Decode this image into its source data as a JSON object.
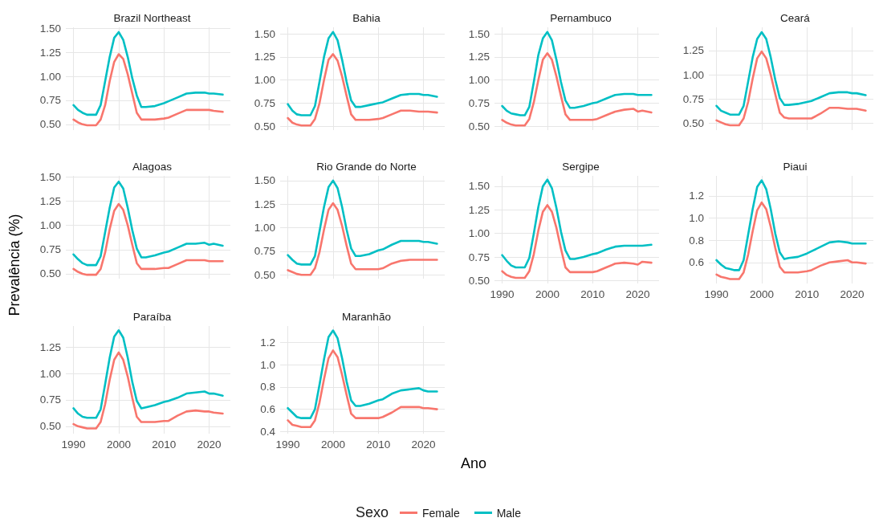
{
  "chart_data": [
    {
      "type": "line",
      "title": "Brazil Northeast",
      "legend": "bottom",
      "legend_title": "Sexo",
      "grid": true,
      "marker": "none",
      "tick_labels": "y",
      "x": [
        1990,
        1991,
        1992,
        1993,
        1994,
        1995,
        1996,
        1997,
        1998,
        1999,
        2000,
        2001,
        2002,
        2003,
        2004,
        2005,
        2006,
        2008,
        2010,
        2011,
        2013,
        2015,
        2017,
        2019,
        2020,
        2021,
        2023
      ],
      "xlim": [
        1988.3,
        2024.7
      ],
      "xticks": [
        1990,
        2000,
        2010,
        2020
      ],
      "ylim": [
        0.44,
        1.51
      ],
      "yticks": [
        {
          "value": 0.5,
          "label": "0.50"
        },
        {
          "value": 0.75,
          "label": "0.75"
        },
        {
          "value": 1,
          "label": "1.00"
        },
        {
          "value": 1.25,
          "label": "1.25"
        },
        {
          "value": 1.5,
          "label": "1.50"
        }
      ],
      "series": [
        {
          "name": "Female",
          "color": "#f8766d",
          "values": [
            0.55,
            0.52,
            0.5,
            0.49,
            0.49,
            0.49,
            0.55,
            0.7,
            0.95,
            1.15,
            1.23,
            1.18,
            1.02,
            0.82,
            0.62,
            0.55,
            0.55,
            0.55,
            0.56,
            0.57,
            0.61,
            0.65,
            0.65,
            0.65,
            0.65,
            0.64,
            0.63
          ]
        },
        {
          "name": "Male",
          "color": "#00bfc4",
          "values": [
            0.7,
            0.65,
            0.62,
            0.6,
            0.6,
            0.6,
            0.7,
            0.95,
            1.2,
            1.4,
            1.46,
            1.38,
            1.2,
            0.98,
            0.8,
            0.68,
            0.68,
            0.69,
            0.72,
            0.74,
            0.78,
            0.82,
            0.83,
            0.83,
            0.82,
            0.82,
            0.81
          ]
        }
      ]
    },
    {
      "type": "line",
      "title": "Bahia",
      "grid": true,
      "marker": "none",
      "tick_labels": "y",
      "x": [
        1990,
        1991,
        1992,
        1993,
        1994,
        1995,
        1996,
        1997,
        1998,
        1999,
        2000,
        2001,
        2002,
        2003,
        2004,
        2005,
        2006,
        2008,
        2010,
        2011,
        2013,
        2015,
        2017,
        2019,
        2020,
        2021,
        2023
      ],
      "xlim": [
        1988.3,
        2024.7
      ],
      "xticks": [
        1990,
        2000,
        2010,
        2020
      ],
      "ylim": [
        0.46,
        1.57
      ],
      "yticks": [
        {
          "value": 0.5,
          "label": "0.50"
        },
        {
          "value": 0.75,
          "label": "0.75"
        },
        {
          "value": 1,
          "label": "1.00"
        },
        {
          "value": 1.25,
          "label": "1.25"
        },
        {
          "value": 1.5,
          "label": "1.50"
        }
      ],
      "series": [
        {
          "color": "#f8766d",
          "values": [
            0.59,
            0.54,
            0.52,
            0.51,
            0.51,
            0.51,
            0.58,
            0.75,
            1.0,
            1.22,
            1.28,
            1.21,
            1.04,
            0.83,
            0.63,
            0.57,
            0.57,
            0.57,
            0.58,
            0.59,
            0.63,
            0.67,
            0.67,
            0.66,
            0.66,
            0.66,
            0.65
          ]
        },
        {
          "color": "#00bfc4",
          "values": [
            0.74,
            0.67,
            0.63,
            0.62,
            0.62,
            0.62,
            0.72,
            0.98,
            1.25,
            1.45,
            1.52,
            1.43,
            1.22,
            0.98,
            0.78,
            0.71,
            0.71,
            0.73,
            0.75,
            0.76,
            0.8,
            0.84,
            0.85,
            0.85,
            0.84,
            0.84,
            0.82
          ]
        }
      ]
    },
    {
      "type": "line",
      "title": "Pernambuco",
      "grid": true,
      "marker": "none",
      "tick_labels": "y",
      "x": [
        1990,
        1991,
        1992,
        1993,
        1994,
        1995,
        1996,
        1997,
        1998,
        1999,
        2000,
        2001,
        2002,
        2003,
        2004,
        2005,
        2006,
        2008,
        2010,
        2011,
        2013,
        2015,
        2017,
        2019,
        2020,
        2021,
        2023
      ],
      "xlim": [
        1988.3,
        2024.7
      ],
      "xticks": [
        1990,
        2000,
        2010,
        2020
      ],
      "ylim": [
        0.46,
        1.57
      ],
      "yticks": [
        {
          "value": 0.5,
          "label": "0.50"
        },
        {
          "value": 0.75,
          "label": "0.75"
        },
        {
          "value": 1,
          "label": "1.00"
        },
        {
          "value": 1.25,
          "label": "1.25"
        },
        {
          "value": 1.5,
          "label": "1.50"
        }
      ],
      "series": [
        {
          "color": "#f8766d",
          "values": [
            0.57,
            0.54,
            0.52,
            0.51,
            0.51,
            0.51,
            0.58,
            0.76,
            1.0,
            1.22,
            1.29,
            1.22,
            1.04,
            0.83,
            0.63,
            0.57,
            0.57,
            0.57,
            0.57,
            0.58,
            0.62,
            0.66,
            0.68,
            0.69,
            0.66,
            0.67,
            0.65
          ]
        },
        {
          "color": "#00bfc4",
          "values": [
            0.72,
            0.67,
            0.64,
            0.63,
            0.62,
            0.62,
            0.71,
            0.98,
            1.27,
            1.45,
            1.52,
            1.43,
            1.22,
            0.98,
            0.78,
            0.7,
            0.7,
            0.72,
            0.75,
            0.76,
            0.8,
            0.84,
            0.85,
            0.85,
            0.84,
            0.84,
            0.84
          ]
        }
      ]
    },
    {
      "type": "line",
      "title": "Ceará",
      "grid": true,
      "marker": "none",
      "tick_labels": "y",
      "x": [
        1990,
        1991,
        1992,
        1993,
        1994,
        1995,
        1996,
        1997,
        1998,
        1999,
        2000,
        2001,
        2002,
        2003,
        2004,
        2005,
        2006,
        2008,
        2010,
        2011,
        2013,
        2015,
        2017,
        2019,
        2020,
        2021,
        2023
      ],
      "xlim": [
        1988.3,
        2024.7
      ],
      "xticks": [
        1990,
        2000,
        2010,
        2020
      ],
      "ylim": [
        0.43,
        1.49
      ],
      "yticks": [
        {
          "value": 0.5,
          "label": "0.50"
        },
        {
          "value": 0.75,
          "label": "0.75"
        },
        {
          "value": 1,
          "label": "1.00"
        },
        {
          "value": 1.25,
          "label": "1.25"
        }
      ],
      "series": [
        {
          "color": "#f8766d",
          "values": [
            0.53,
            0.51,
            0.49,
            0.48,
            0.48,
            0.48,
            0.55,
            0.72,
            0.96,
            1.17,
            1.24,
            1.17,
            1.0,
            0.8,
            0.61,
            0.56,
            0.55,
            0.55,
            0.55,
            0.55,
            0.6,
            0.66,
            0.66,
            0.65,
            0.65,
            0.65,
            0.63
          ]
        },
        {
          "color": "#00bfc4",
          "values": [
            0.68,
            0.63,
            0.61,
            0.59,
            0.59,
            0.59,
            0.68,
            0.93,
            1.18,
            1.37,
            1.44,
            1.37,
            1.18,
            0.95,
            0.76,
            0.69,
            0.69,
            0.7,
            0.72,
            0.73,
            0.77,
            0.81,
            0.82,
            0.82,
            0.81,
            0.81,
            0.79
          ]
        }
      ]
    },
    {
      "type": "line",
      "title": "Alagoas",
      "ylabel": "Prevalência (%)",
      "grid": true,
      "marker": "none",
      "tick_labels": "y",
      "x": [
        1990,
        1991,
        1992,
        1993,
        1994,
        1995,
        1996,
        1997,
        1998,
        1999,
        2000,
        2001,
        2002,
        2003,
        2004,
        2005,
        2006,
        2008,
        2010,
        2011,
        2013,
        2015,
        2017,
        2019,
        2020,
        2021,
        2023
      ],
      "xlim": [
        1988.3,
        2024.7
      ],
      "xticks": [
        1990,
        2000,
        2010,
        2020
      ],
      "ylim": [
        0.45,
        1.51
      ],
      "yticks": [
        {
          "value": 0.5,
          "label": "0.50"
        },
        {
          "value": 0.75,
          "label": "0.75"
        },
        {
          "value": 1,
          "label": "1.00"
        },
        {
          "value": 1.25,
          "label": "1.25"
        },
        {
          "value": 1.5,
          "label": "1.50"
        }
      ],
      "series": [
        {
          "color": "#f8766d",
          "values": [
            0.55,
            0.52,
            0.5,
            0.49,
            0.49,
            0.49,
            0.55,
            0.72,
            0.96,
            1.15,
            1.22,
            1.16,
            1.0,
            0.8,
            0.61,
            0.55,
            0.55,
            0.55,
            0.56,
            0.56,
            0.6,
            0.64,
            0.64,
            0.64,
            0.63,
            0.63,
            0.63
          ]
        },
        {
          "color": "#00bfc4",
          "values": [
            0.7,
            0.65,
            0.61,
            0.59,
            0.59,
            0.59,
            0.68,
            0.93,
            1.18,
            1.39,
            1.45,
            1.38,
            1.18,
            0.95,
            0.76,
            0.67,
            0.67,
            0.69,
            0.72,
            0.73,
            0.77,
            0.81,
            0.81,
            0.82,
            0.8,
            0.81,
            0.79
          ]
        }
      ]
    },
    {
      "type": "line",
      "title": "Rio Grande do Norte",
      "grid": true,
      "marker": "none",
      "tick_labels": "y",
      "x": [
        1990,
        1991,
        1992,
        1993,
        1994,
        1995,
        1996,
        1997,
        1998,
        1999,
        2000,
        2001,
        2002,
        2003,
        2004,
        2005,
        2006,
        2008,
        2010,
        2011,
        2013,
        2015,
        2017,
        2019,
        2020,
        2021,
        2023
      ],
      "xlim": [
        1988.3,
        2024.7
      ],
      "xticks": [
        1990,
        2000,
        2010,
        2020
      ],
      "ylim": [
        0.46,
        1.55
      ],
      "yticks": [
        {
          "value": 0.5,
          "label": "0.50"
        },
        {
          "value": 0.75,
          "label": "0.75"
        },
        {
          "value": 1,
          "label": "1.00"
        },
        {
          "value": 1.25,
          "label": "1.25"
        },
        {
          "value": 1.5,
          "label": "1.50"
        }
      ],
      "series": [
        {
          "color": "#f8766d",
          "values": [
            0.55,
            0.53,
            0.51,
            0.5,
            0.5,
            0.5,
            0.57,
            0.74,
            0.98,
            1.19,
            1.26,
            1.19,
            1.02,
            0.81,
            0.62,
            0.56,
            0.56,
            0.56,
            0.56,
            0.57,
            0.62,
            0.65,
            0.66,
            0.66,
            0.66,
            0.66,
            0.66
          ]
        },
        {
          "color": "#00bfc4",
          "values": [
            0.71,
            0.66,
            0.62,
            0.61,
            0.61,
            0.61,
            0.7,
            0.96,
            1.22,
            1.43,
            1.5,
            1.42,
            1.22,
            0.98,
            0.78,
            0.7,
            0.7,
            0.72,
            0.76,
            0.77,
            0.82,
            0.86,
            0.86,
            0.86,
            0.85,
            0.85,
            0.83
          ]
        }
      ]
    },
    {
      "type": "line",
      "title": "Sergipe",
      "grid": true,
      "marker": "none",
      "x": [
        1990,
        1991,
        1992,
        1993,
        1994,
        1995,
        1996,
        1997,
        1998,
        1999,
        2000,
        2001,
        2002,
        2003,
        2004,
        2005,
        2006,
        2008,
        2010,
        2011,
        2013,
        2015,
        2017,
        2019,
        2020,
        2021,
        2023
      ],
      "xlim": [
        1988.3,
        2024.7
      ],
      "xticks": [
        1990,
        2000,
        2010,
        2020
      ],
      "ylim": [
        0.47,
        1.61
      ],
      "yticks": [
        {
          "value": 0.5,
          "label": "0.50"
        },
        {
          "value": 0.75,
          "label": "0.75"
        },
        {
          "value": 1,
          "label": "1.00"
        },
        {
          "value": 1.25,
          "label": "1.25"
        },
        {
          "value": 1.5,
          "label": "1.50"
        }
      ],
      "series": [
        {
          "color": "#f8766d",
          "values": [
            0.6,
            0.56,
            0.54,
            0.53,
            0.53,
            0.53,
            0.6,
            0.78,
            1.03,
            1.23,
            1.3,
            1.23,
            1.06,
            0.84,
            0.64,
            0.59,
            0.59,
            0.59,
            0.59,
            0.6,
            0.64,
            0.68,
            0.69,
            0.68,
            0.67,
            0.7,
            0.69
          ]
        },
        {
          "color": "#00bfc4",
          "values": [
            0.77,
            0.71,
            0.66,
            0.64,
            0.64,
            0.64,
            0.74,
            1.0,
            1.28,
            1.5,
            1.57,
            1.48,
            1.27,
            1.02,
            0.82,
            0.73,
            0.73,
            0.75,
            0.78,
            0.79,
            0.83,
            0.86,
            0.87,
            0.87,
            0.87,
            0.87,
            0.88
          ]
        }
      ]
    },
    {
      "type": "line",
      "title": "Piaui",
      "grid": true,
      "marker": "none",
      "x": [
        1990,
        1991,
        1992,
        1993,
        1994,
        1995,
        1996,
        1997,
        1998,
        1999,
        2000,
        2001,
        2002,
        2003,
        2004,
        2005,
        2006,
        2008,
        2010,
        2011,
        2013,
        2015,
        2017,
        2019,
        2020,
        2021,
        2023
      ],
      "xlim": [
        1988.3,
        2024.7
      ],
      "xticks": [
        1990,
        2000,
        2010,
        2020
      ],
      "ylim": [
        0.41,
        1.38
      ],
      "yticks": [
        {
          "value": 0.6,
          "label": "0.6"
        },
        {
          "value": 0.8,
          "label": "0.8"
        },
        {
          "value": 1,
          "label": "1.0"
        },
        {
          "value": 1.2,
          "label": "1.2"
        }
      ],
      "series": [
        {
          "color": "#f8766d",
          "values": [
            0.49,
            0.47,
            0.46,
            0.45,
            0.45,
            0.45,
            0.51,
            0.67,
            0.88,
            1.07,
            1.14,
            1.08,
            0.92,
            0.73,
            0.56,
            0.51,
            0.51,
            0.51,
            0.52,
            0.53,
            0.57,
            0.6,
            0.61,
            0.62,
            0.6,
            0.6,
            0.59
          ]
        },
        {
          "color": "#00bfc4",
          "values": [
            0.62,
            0.58,
            0.55,
            0.54,
            0.53,
            0.53,
            0.62,
            0.85,
            1.08,
            1.28,
            1.34,
            1.26,
            1.08,
            0.86,
            0.69,
            0.63,
            0.64,
            0.65,
            0.68,
            0.7,
            0.74,
            0.78,
            0.79,
            0.78,
            0.77,
            0.77,
            0.77
          ]
        }
      ]
    },
    {
      "type": "line",
      "title": "Paraíba",
      "grid": true,
      "marker": "none",
      "x": [
        1990,
        1991,
        1992,
        1993,
        1994,
        1995,
        1996,
        1997,
        1998,
        1999,
        2000,
        2001,
        2002,
        2003,
        2004,
        2005,
        2006,
        2008,
        2010,
        2011,
        2013,
        2015,
        2017,
        2019,
        2020,
        2021,
        2023
      ],
      "xlim": [
        1988.3,
        2024.7
      ],
      "xticks": [
        1990,
        2000,
        2010,
        2020
      ],
      "ylim": [
        0.43,
        1.45
      ],
      "yticks": [
        {
          "value": 0.5,
          "label": "0.50"
        },
        {
          "value": 0.75,
          "label": "0.75"
        },
        {
          "value": 1,
          "label": "1.00"
        },
        {
          "value": 1.25,
          "label": "1.25"
        }
      ],
      "series": [
        {
          "color": "#f8766d",
          "values": [
            0.52,
            0.5,
            0.49,
            0.48,
            0.48,
            0.48,
            0.54,
            0.71,
            0.94,
            1.13,
            1.2,
            1.13,
            0.97,
            0.77,
            0.59,
            0.54,
            0.54,
            0.54,
            0.55,
            0.55,
            0.6,
            0.64,
            0.65,
            0.64,
            0.64,
            0.63,
            0.62
          ]
        },
        {
          "color": "#00bfc4",
          "values": [
            0.67,
            0.62,
            0.59,
            0.58,
            0.58,
            0.58,
            0.66,
            0.9,
            1.15,
            1.35,
            1.41,
            1.34,
            1.15,
            0.92,
            0.74,
            0.67,
            0.68,
            0.7,
            0.73,
            0.74,
            0.77,
            0.81,
            0.82,
            0.83,
            0.81,
            0.81,
            0.79
          ]
        }
      ]
    },
    {
      "type": "line",
      "title": "Maranhão",
      "xlabel": "Ano",
      "grid": true,
      "marker": "none",
      "x": [
        1990,
        1991,
        1992,
        1993,
        1994,
        1995,
        1996,
        1997,
        1998,
        1999,
        2000,
        2001,
        2002,
        2003,
        2004,
        2005,
        2006,
        2008,
        2010,
        2011,
        2013,
        2015,
        2017,
        2019,
        2020,
        2021,
        2023
      ],
      "xlim": [
        1988.3,
        2024.7
      ],
      "xticks": [
        1990,
        2000,
        2010,
        2020
      ],
      "ylim": [
        0.38,
        1.35
      ],
      "yticks": [
        {
          "value": 0.4,
          "label": "0.4"
        },
        {
          "value": 0.6,
          "label": "0.6"
        },
        {
          "value": 0.8,
          "label": "0.8"
        },
        {
          "value": 1,
          "label": "1.0"
        },
        {
          "value": 1.2,
          "label": "1.2"
        }
      ],
      "series": [
        {
          "color": "#f8766d",
          "values": [
            0.5,
            0.46,
            0.45,
            0.44,
            0.44,
            0.44,
            0.5,
            0.66,
            0.87,
            1.06,
            1.13,
            1.07,
            0.91,
            0.73,
            0.56,
            0.52,
            0.52,
            0.52,
            0.52,
            0.53,
            0.57,
            0.62,
            0.62,
            0.62,
            0.61,
            0.61,
            0.6
          ]
        },
        {
          "color": "#00bfc4",
          "values": [
            0.61,
            0.57,
            0.53,
            0.52,
            0.52,
            0.52,
            0.6,
            0.82,
            1.05,
            1.25,
            1.31,
            1.24,
            1.06,
            0.85,
            0.68,
            0.63,
            0.63,
            0.65,
            0.68,
            0.69,
            0.74,
            0.77,
            0.78,
            0.79,
            0.77,
            0.76,
            0.76
          ]
        }
      ]
    }
  ]
}
